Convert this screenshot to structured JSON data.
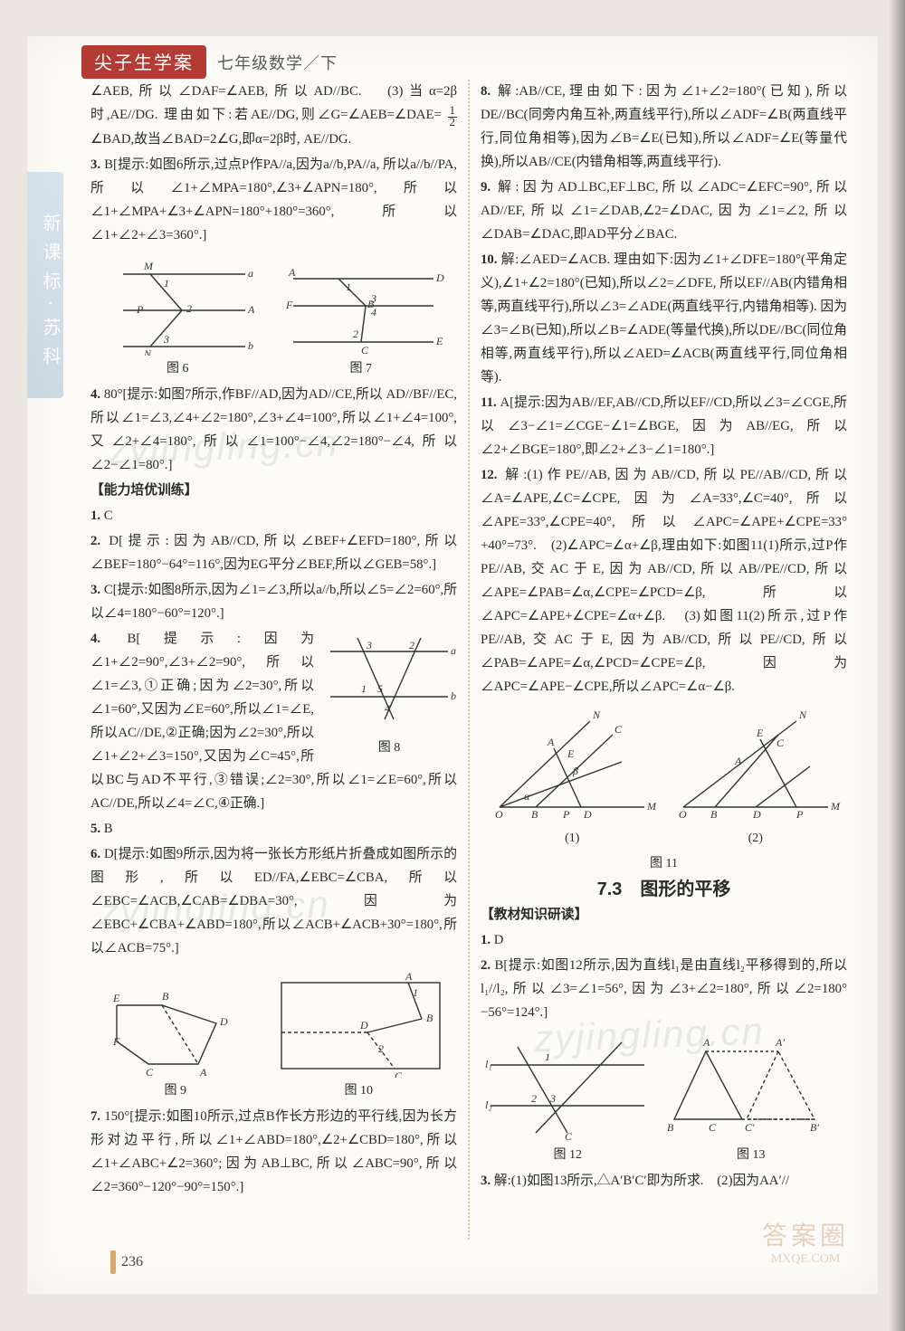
{
  "colors": {
    "accent": "#b33b34",
    "rule": "#e5bfa3",
    "sidebar": "#a6c0d6",
    "footbar": "#d8a96a",
    "bg": "#fdfbf7"
  },
  "side_tab": "新课标·苏科",
  "header": {
    "badge": "尖子生学案",
    "grade": "七年级数学／下"
  },
  "page_number": "236",
  "watermark": "zyjingling.cn",
  "stamp": {
    "line1": "答案圈",
    "line2": "MXQE.COM"
  },
  "section_title": "7.3　图形的平移",
  "sub_title_left": "【能力培优训练】",
  "sub_title_right": "【教材知识研读】",
  "fig_caps": {
    "f6": "图 6",
    "f7": "图 7",
    "f8": "图 8",
    "f9": "图 9",
    "f10": "图 10",
    "f11": "图 11",
    "f11a": "(1)",
    "f11b": "(2)",
    "f12": "图 12",
    "f13": "图 13"
  },
  "left": [
    {
      "n": "",
      "t": "∠AEB,所以∠DAF=∠AEB,所以AD//BC.　(3)当α=2β时,AE//DG. 理由如下:若AE//DG,则∠G=∠AEB=∠DAE= ½∠BAD,故当∠BAD=2∠G,即α=2β时, AE//DG."
    },
    {
      "n": "3.",
      "t": "B[提示:如图6所示,过点P作PA//a,因为a//b,PA//a, 所以a//b//PA,所以∠1+∠MPA=180°,∠3+∠APN=180°,所以∠1+∠MPA+∠3+∠APN=180°+180°=360°,所以∠1+∠2+∠3=360°.]"
    },
    {
      "fig": "f6f7"
    },
    {
      "n": "4.",
      "t": "80°[提示:如图7所示,作BF//AD,因为AD//CE,所以 AD//BF//EC,所以∠1=∠3,∠4+∠2=180°,∠3+∠4=100°,所以∠1+∠4=100°,又∠2+∠4=180°,所以∠1=100°−∠4,∠2=180°−∠4,所以∠2−∠1=80°.]"
    },
    {
      "title": "sub_title_left"
    },
    {
      "n": "1.",
      "t": "C"
    },
    {
      "n": "2.",
      "t": "D[提示:因为AB//CD,所以∠BEF+∠EFD=180°,所以∠BEF=180°−64°=116°,因为EG平分∠BEF,所以∠GEB=58°.]"
    },
    {
      "n": "3.",
      "t": "C[提示:如图8所示,因为∠1=∠3,所以a//b,所以∠5=∠2=60°,所以∠4=180°−60°=120°.]"
    },
    {
      "fig": "f8"
    },
    {
      "n": "4.",
      "t": "B[提示:因为∠1+∠2=90°,∠3+∠2=90°,所以∠1=∠3,①正确;因为∠2=30°,所以∠1=60°,又因为∠E=60°,所以∠1=∠E,所以AC//DE,②正确;因为∠2=30°,所以∠1+∠2+∠3=150°,又因为∠C=45°,所以BC与AD不平行,③错误;∠2=30°,所以∠1=∠E=60°,所以AC//DE,所以∠4=∠C,④正确.]"
    },
    {
      "n": "5.",
      "t": "B"
    },
    {
      "n": "6.",
      "t": "D[提示:如图9所示,因为将一张长方形纸片折叠成如图所示的图形,所以ED//FA,∠EBC=∠CBA,所以∠EBC=∠ACB,∠CAB=∠DBA=30°,因为∠EBC+∠CBA+∠ABD=180°,所以∠ACB+∠ACB+30°=180°,所以∠ACB=75°.]"
    },
    {
      "fig": "f9f10"
    },
    {
      "n": "7.",
      "t": "150°[提示:如图10所示,过点B作长方形边的平行线,因为长方形对边平行,所以∠1+∠ABD=180°,∠2+∠CBD=180°,所以∠1+∠ABC+∠2=360°;因为AB⊥BC,所以∠ABC=90°,所以∠2=360°−120°−90°=150°.]"
    }
  ],
  "right": [
    {
      "n": "8.",
      "t": "解:AB//CE,理由如下:因为∠1+∠2=180°(已知),所以DE//BC(同旁内角互补,两直线平行),所以∠ADF=∠B(两直线平行,同位角相等),因为∠B=∠E(已知),所以∠ADF=∠E(等量代换),所以AB//CE(内错角相等,两直线平行)."
    },
    {
      "n": "9.",
      "t": "解:因为AD⊥BC,EF⊥BC,所以∠ADC=∠EFC=90°,所以AD//EF,所以∠1=∠DAB,∠2=∠DAC,因为∠1=∠2,所以∠DAB=∠DAC,即AD平分∠BAC."
    },
    {
      "n": "10.",
      "t": "解:∠AED=∠ACB. 理由如下:因为∠1+∠DFE=180°(平角定义),∠1+∠2=180°(已知),所以∠2=∠DFE, 所以EF//AB(内错角相等,两直线平行),所以∠3=∠ADE(两直线平行,内错角相等). 因为∠3=∠B(已知),所以∠B=∠ADE(等量代换),所以DE//BC(同位角相等,两直线平行),所以∠AED=∠ACB(两直线平行,同位角相等)."
    },
    {
      "n": "11.",
      "t": "A[提示:因为AB//EF,AB//CD,所以EF//CD,所以∠3=∠CGE,所以∠3−∠1=∠CGE−∠1=∠BGE,因为AB//EG,所以∠2+∠BGE=180°,即∠2+∠3−∠1=180°.]"
    },
    {
      "n": "12.",
      "t": "解:(1)作PE//AB,因为AB//CD,所以PE//AB//CD,所以∠A=∠APE,∠C=∠CPE,因为∠A=33°,∠C=40°,所以∠APE=33°,∠CPE=40°,所以∠APC=∠APE+∠CPE=33°+40°=73°.　(2)∠APC=∠α+∠β,理由如下:如图11(1)所示,过P作PE//AB,交AC于E,因为AB//CD,所以AB//PE//CD,所以∠APE=∠PAB=∠α,∠CPE=∠PCD=∠β,所以∠APC=∠APE+∠CPE=∠α+∠β.　(3)如图11(2)所示,过P作PE//AB,交AC于E,因为AB//CD,所以PE//CD,所以∠PAB=∠APE=∠α,∠PCD=∠CPE=∠β,因为∠APC=∠APE−∠CPE,所以∠APC=∠α−∠β."
    },
    {
      "fig": "f11"
    },
    {
      "sec": "section_title"
    },
    {
      "title": "sub_title_right"
    },
    {
      "n": "1.",
      "t": "D"
    },
    {
      "n": "2.",
      "t": "B[提示:如图12所示,因为直线l₁是由直线l₂平移得到的,所以l₁//l₂,所以∠3=∠1=56°,因为∠3+∠2=180°,所以∠2=180°−56°=124°.]"
    },
    {
      "fig": "f12f13"
    },
    {
      "n": "3.",
      "t": "解:(1)如图13所示,△A′B′C′即为所求.　(2)因为AA′//"
    }
  ]
}
